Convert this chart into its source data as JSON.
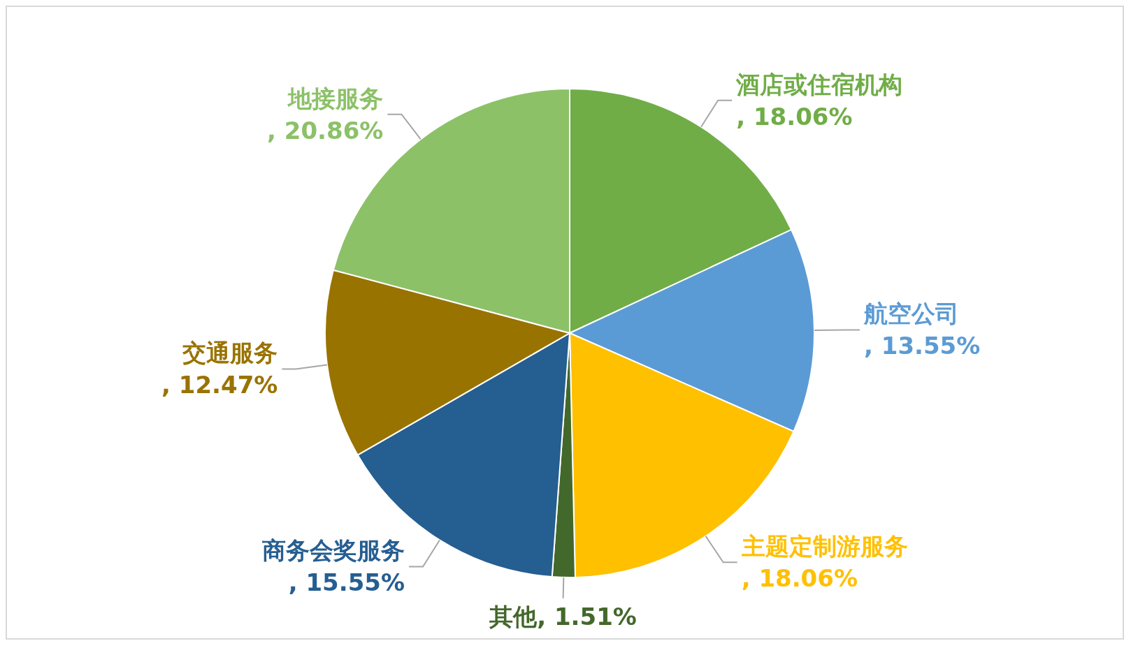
{
  "chart_data": {
    "type": "pie",
    "categories": [
      "酒店或住宿机构",
      "航空公司",
      "主题定制游服务",
      "其他",
      "商务会奖服务",
      "交通服务",
      "地接服务"
    ],
    "values": [
      18.06,
      13.55,
      18.06,
      1.51,
      15.55,
      12.47,
      20.86
    ],
    "colors": [
      "#70ad47",
      "#5b9bd5",
      "#ffc000",
      "#43682b",
      "#255e91",
      "#997300",
      "#8cc168"
    ],
    "value_labels": [
      ", 18.06%",
      ", 13.55%",
      ", 18.06%",
      ", 1.51%",
      ", 15.55%",
      ", 12.47%",
      ", 20.86%"
    ]
  }
}
